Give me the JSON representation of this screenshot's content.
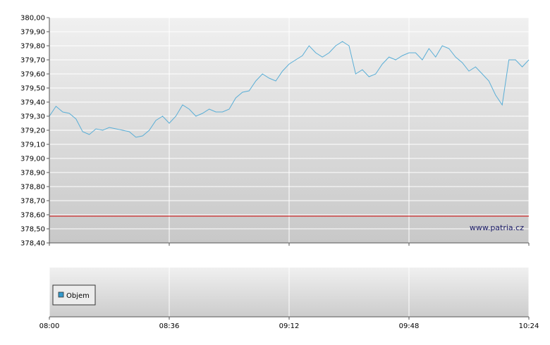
{
  "chart_data": [
    {
      "type": "line",
      "ylim": [
        378.4,
        380.0
      ],
      "y_ticks": [
        "380,00",
        "379,90",
        "379,80",
        "379,70",
        "379,60",
        "379,50",
        "379,40",
        "379,30",
        "379,20",
        "379,10",
        "379,00",
        "378,90",
        "378,80",
        "378,70",
        "378,60",
        "378,50",
        "378,40"
      ],
      "x_ticks": [
        "08:00",
        "08:36",
        "09:12",
        "09:48",
        "10:24"
      ],
      "grid": true,
      "reference_line": {
        "value": 378.59,
        "color": "#cc0000"
      },
      "watermark": "www.patria.cz",
      "series": [
        {
          "color": "#5aaed6",
          "x_minutes": [
            0,
            2,
            4,
            6,
            8,
            10,
            12,
            14,
            16,
            18,
            20,
            22,
            24,
            26,
            28,
            30,
            32,
            34,
            36,
            38,
            40,
            42,
            44,
            46,
            48,
            50,
            52,
            54,
            56,
            58,
            60,
            62,
            64,
            66,
            68,
            70,
            72,
            74,
            76,
            78,
            80,
            82,
            84,
            86,
            88,
            90,
            92,
            94,
            96,
            98,
            100,
            102,
            104,
            106,
            108,
            110,
            112,
            114,
            116,
            118,
            120,
            122,
            124,
            126,
            128,
            130,
            132,
            134,
            136,
            138,
            140,
            142,
            144
          ],
          "values": [
            379.3,
            379.37,
            379.33,
            379.32,
            379.28,
            379.19,
            379.17,
            379.21,
            379.2,
            379.22,
            379.21,
            379.2,
            379.19,
            379.15,
            379.16,
            379.2,
            379.27,
            379.3,
            379.25,
            379.3,
            379.38,
            379.35,
            379.3,
            379.32,
            379.35,
            379.33,
            379.33,
            379.35,
            379.43,
            379.47,
            379.48,
            379.55,
            379.6,
            379.57,
            379.55,
            379.62,
            379.67,
            379.7,
            379.73,
            379.8,
            379.75,
            379.72,
            379.75,
            379.8,
            379.83,
            379.8,
            379.6,
            379.63,
            379.58,
            379.6,
            379.67,
            379.72,
            379.7,
            379.73,
            379.75,
            379.75,
            379.7,
            379.78,
            379.72,
            379.8,
            379.78,
            379.72,
            379.68,
            379.62,
            379.65,
            379.6,
            379.55,
            379.45,
            379.38,
            379.7,
            379.7,
            379.65,
            379.7
          ]
        }
      ]
    },
    {
      "type": "bar",
      "legend": "Objem",
      "legend_color": "#3399cc",
      "legend_position": "top-left",
      "x_ticks": [
        "08:00",
        "08:36",
        "09:12",
        "09:48",
        "10:24"
      ],
      "grid": true,
      "values": []
    }
  ]
}
